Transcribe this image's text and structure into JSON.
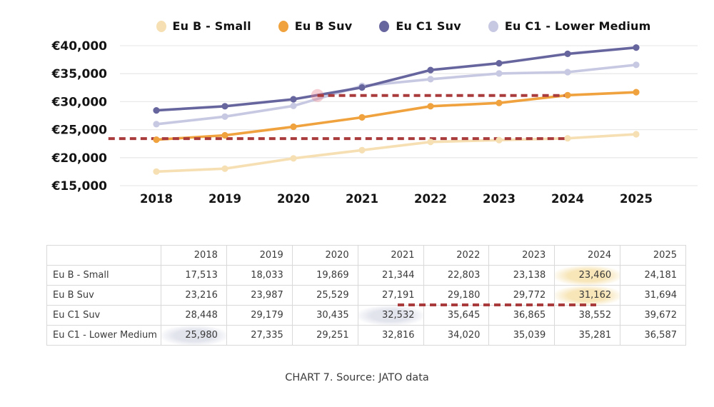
{
  "caption": "CHART 7. Source: JATO data",
  "colors": {
    "annotation_red": "#A93B3C",
    "grid": "#E9E9E9",
    "axis_text": "#141414",
    "table_border": "#D9D9D9",
    "highlight_cream": "rgba(246,225,172,0.85)",
    "highlight_gray": "rgba(206,209,224,0.6)"
  },
  "chart_data": {
    "type": "line",
    "x": [
      2018,
      2019,
      2020,
      2021,
      2022,
      2023,
      2024,
      2025
    ],
    "series": [
      {
        "name": "Eu B - Small",
        "color": "#F6DFB2",
        "values": [
          17513,
          18033,
          19869,
          21344,
          22803,
          23138,
          23460,
          24181
        ]
      },
      {
        "name": "Eu B Suv",
        "color": "#EFA23D",
        "values": [
          23216,
          23987,
          25529,
          27191,
          29180,
          29772,
          31162,
          31694
        ]
      },
      {
        "name": "Eu C1 Suv",
        "color": "#67659E",
        "values": [
          28448,
          29179,
          30435,
          32532,
          35645,
          36865,
          38552,
          39672
        ]
      },
      {
        "name": "Eu C1 - Lower Medium",
        "color": "#C7C8E2",
        "values": [
          25980,
          27335,
          29251,
          32816,
          34020,
          35039,
          35281,
          36587
        ]
      }
    ],
    "y_ticks": [
      {
        "value": 15000,
        "label": "€15,000"
      },
      {
        "value": 20000,
        "label": "€20,000"
      },
      {
        "value": 25000,
        "label": "€25,000"
      },
      {
        "value": 30000,
        "label": "€30,000"
      },
      {
        "value": 35000,
        "label": "€35,000"
      },
      {
        "value": 40000,
        "label": "€40,000"
      }
    ],
    "ylim": [
      15000,
      40000
    ],
    "grid": true,
    "legend_position": "top",
    "annotations": [
      {
        "type": "dashed-line",
        "y": 23400,
        "x_from": 2017.3,
        "x_to": 2024,
        "color": "#A93B3C",
        "glow_at_start": false
      },
      {
        "type": "dashed-line",
        "y": 31100,
        "x_from": 2020.35,
        "x_to": 2024,
        "color": "#A93B3C",
        "glow_at_start": true
      }
    ]
  },
  "table": {
    "col_headers": [
      "2018",
      "2019",
      "2020",
      "2021",
      "2022",
      "2023",
      "2024",
      "2025"
    ],
    "rows": [
      {
        "label": "Eu B - Small",
        "values": [
          "17,513",
          "18,033",
          "19,869",
          "21,344",
          "22,803",
          "23,138",
          "23,460",
          "24,181"
        ],
        "highlight": {
          "col": 6,
          "style": "cream"
        }
      },
      {
        "label": "Eu B Suv",
        "values": [
          "23,216",
          "23,987",
          "25,529",
          "27,191",
          "29,180",
          "29,772",
          "31,162",
          "31,694"
        ],
        "highlight": {
          "col": 6,
          "style": "cream"
        }
      },
      {
        "label": "Eu C1 Suv",
        "values": [
          "28,448",
          "29,179",
          "30,435",
          "32,532",
          "35,645",
          "36,865",
          "38,552",
          "39,672"
        ],
        "highlight": {
          "col": 3,
          "style": "gray"
        }
      },
      {
        "label": "Eu C1 - Lower Medium",
        "values": [
          "25,980",
          "27,335",
          "29,251",
          "32,816",
          "34,020",
          "35,039",
          "35,281",
          "36,587"
        ],
        "highlight": {
          "col": 0,
          "style": "gray"
        }
      }
    ],
    "annotation": {
      "type": "dashed-line",
      "between_rows": [
        "Eu B Suv",
        "Eu C1 Suv"
      ],
      "span": "2021 to 2024",
      "color": "#A93B3C"
    }
  }
}
